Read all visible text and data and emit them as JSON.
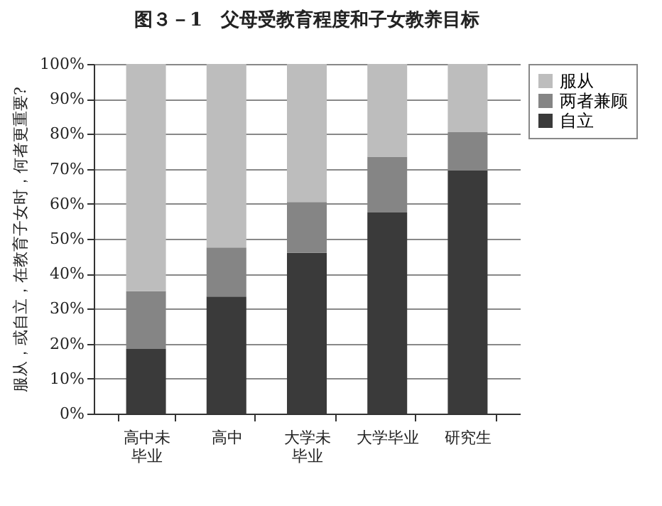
{
  "chart_data": {
    "type": "bar",
    "stacked": true,
    "title": "图３－1　父母受教育程度和子女教养目标",
    "ylabel": "服从，或自立，在教育子女时，何者更重要?",
    "categories": [
      "高中未毕业",
      "高中",
      "大学未毕业",
      "大学毕业",
      "研究生"
    ],
    "series": [
      {
        "name": "自立",
        "color": "#3a3a3a",
        "values": [
          18.5,
          33.5,
          46,
          57.5,
          69.5
        ]
      },
      {
        "name": "两者兼顾",
        "color": "#858585",
        "values": [
          16.5,
          14,
          14.5,
          16,
          11
        ]
      },
      {
        "name": "服从",
        "color": "#bdbdbd",
        "values": [
          65,
          52.5,
          39.5,
          26.5,
          19.5
        ]
      }
    ],
    "ylim": [
      0,
      100
    ],
    "yticks": [
      {
        "value": 0,
        "label": "0%"
      },
      {
        "value": 10,
        "label": "10%"
      },
      {
        "value": 20,
        "label": "20%"
      },
      {
        "value": 30,
        "label": "30%"
      },
      {
        "value": 40,
        "label": "40%"
      },
      {
        "value": 50,
        "label": "50%"
      },
      {
        "value": 60,
        "label": "60%"
      },
      {
        "value": 70,
        "label": "70%"
      },
      {
        "value": 80,
        "label": "80%"
      },
      {
        "value": 90,
        "label": "90%"
      },
      {
        "value": 100,
        "label": "100%"
      }
    ],
    "grid": "y",
    "legend": "right"
  }
}
